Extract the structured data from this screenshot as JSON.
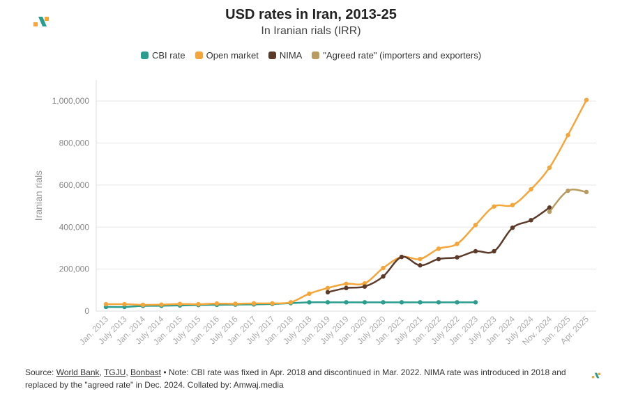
{
  "header": {
    "title": "USD rates in Iran, 2013-25",
    "subtitle": "In Iranian rials (IRR)"
  },
  "legend": [
    {
      "label": "CBI rate",
      "color": "#2a9d8f"
    },
    {
      "label": "Open market",
      "color": "#f4a63a"
    },
    {
      "label": "NIMA",
      "color": "#5b3a29"
    },
    {
      "label": "\"Agreed rate\" (importers and exporters)",
      "color": "#b89b5e"
    }
  ],
  "footer": {
    "source_prefix": "Source: ",
    "source_1": "World Bank",
    "sep_1": ", ",
    "source_2": "TGJU",
    "sep_2": ", ",
    "source_3": "Bonbast",
    "note": " • Note: CBI rate was fixed in Apr. 2018 and discontinued in Mar. 2022. NIMA rate was introduced in 2018 and replaced by the \"agreed rate\" in Dec. 2024. Collated by: Amwaj.media"
  },
  "chart_data": {
    "type": "line",
    "title": "USD rates in Iran, 2013-25",
    "subtitle": "In Iranian rials (IRR)",
    "xlabel": "",
    "ylabel": "Iranian rials",
    "ylim": [
      0,
      1100000
    ],
    "yticks": [
      0,
      200000,
      400000,
      600000,
      800000,
      1000000
    ],
    "ytick_labels": [
      "0",
      "200,000",
      "400,000",
      "600,000",
      "800,000",
      "1,000,000"
    ],
    "grid": true,
    "legend_position": "top",
    "categories": [
      "Jan. 2013",
      "July 2013",
      "Jan. 2014",
      "July 2014",
      "Jan. 2015",
      "July 2015",
      "Jan. 2016",
      "July 2016",
      "Jan. 2017",
      "July 2017",
      "Jan. 2018",
      "July 2018",
      "Jan. 2019",
      "July 2019",
      "Jan. 2020",
      "July 2020",
      "Jan. 2021",
      "July 2021",
      "Jan. 2022",
      "July 2022",
      "Jan. 2023",
      "July 2023",
      "Jan. 2024",
      "July 2024",
      "Nov. 2024",
      "Jan. 2025",
      "Apr. 2025"
    ],
    "series": [
      {
        "name": "CBI rate",
        "color": "#2a9d8f",
        "values": [
          20000,
          20000,
          25000,
          25500,
          27000,
          29000,
          30000,
          31000,
          32000,
          34000,
          38000,
          42000,
          42000,
          42000,
          42000,
          42000,
          42000,
          42000,
          42000,
          42000,
          42000,
          null,
          null,
          null,
          null,
          null,
          null
        ]
      },
      {
        "name": "Open market",
        "color": "#f4a63a",
        "values": [
          33000,
          33000,
          30000,
          31000,
          34000,
          33000,
          36000,
          35000,
          37000,
          37000,
          42000,
          83000,
          110000,
          130000,
          132000,
          205000,
          258000,
          248000,
          297000,
          320000,
          410000,
          498000,
          505000,
          580000,
          683000,
          838000,
          1005000
        ]
      },
      {
        "name": "NIMA",
        "color": "#5b3a29",
        "values": [
          null,
          null,
          null,
          null,
          null,
          null,
          null,
          null,
          null,
          null,
          null,
          null,
          90000,
          110000,
          117000,
          165000,
          258000,
          218000,
          248000,
          256000,
          285000,
          285000,
          397000,
          433000,
          493000,
          null,
          null
        ]
      },
      {
        "name": "\"Agreed rate\" (importers and exporters)",
        "color": "#b89b5e",
        "values": [
          null,
          null,
          null,
          null,
          null,
          null,
          null,
          null,
          null,
          null,
          null,
          null,
          null,
          null,
          null,
          null,
          null,
          null,
          null,
          null,
          null,
          null,
          null,
          null,
          473000,
          573000,
          567000
        ]
      }
    ]
  }
}
